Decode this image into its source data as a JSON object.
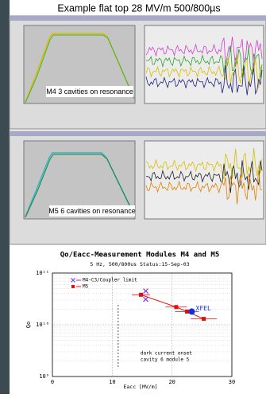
{
  "header": {
    "title": "Example flat top 28 MV/m 500/800µs"
  },
  "scopes": [
    {
      "label": "M4 3 cavities on resonance"
    },
    {
      "label": "M5 6 cavities on resonance"
    }
  ],
  "chart_data": {
    "type": "scatter",
    "title": "Qo/Eacc-Measurement Modules M4 and M5",
    "subtitle": "5 Hz, 500/800us Status:15-Sep-03",
    "x_label": "Eacc [MV/m]",
    "y_label": "Qo",
    "xlim": [
      0,
      30
    ],
    "xticks": [
      0,
      10,
      20,
      30
    ],
    "ylim": [
      1000000000,
      100000000000
    ],
    "log_y": true,
    "yticks": [
      {
        "value": 1000000000,
        "label": "10⁹"
      },
      {
        "value": 10000000000,
        "label": "10¹⁰"
      },
      {
        "value": 100000000000,
        "label": "10¹¹"
      }
    ],
    "grid": true,
    "series": [
      {
        "name": "M4-C3/Coupler limit",
        "color": "#8a3fd0",
        "marker": "x",
        "x": [
          15.6,
          15.6
        ],
        "values": [
          45000000000,
          31000000000
        ]
      },
      {
        "name": "M5",
        "color": "#e01010",
        "marker": "square",
        "line": true,
        "x": [
          14.8,
          20.7,
          22.5,
          25.3
        ],
        "values": [
          38000000000,
          22000000000,
          18000000000,
          13000000000
        ],
        "xerr": [
          1.5,
          1.8,
          2,
          2.2
        ]
      }
    ],
    "highlight": {
      "label": "XFEL",
      "x": 23.3,
      "y": 18000000000,
      "color": "#1030e0"
    },
    "dark_current": {
      "x": 11,
      "lines": [
        "dark current onset",
        "cavity 6 module 5"
      ]
    }
  }
}
